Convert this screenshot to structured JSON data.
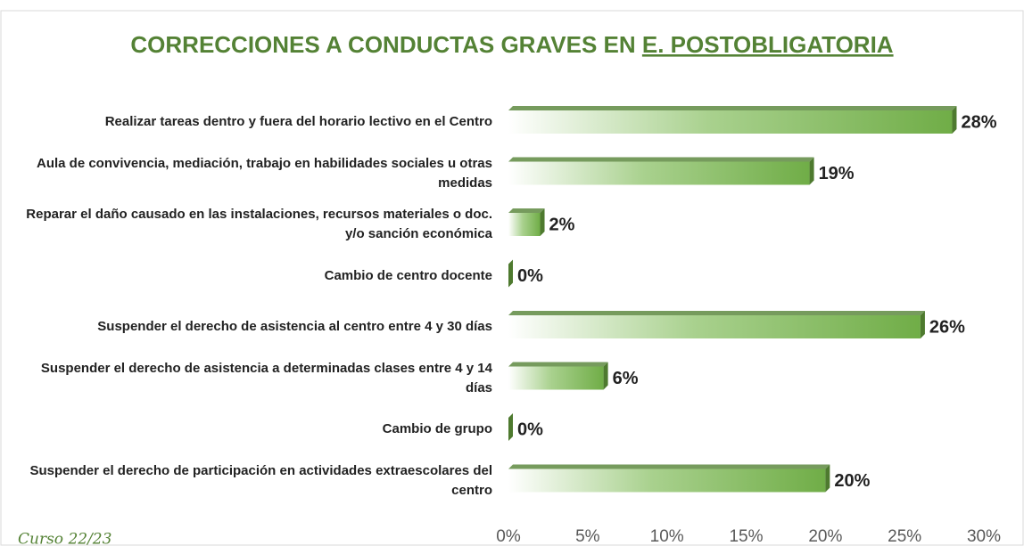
{
  "chart_data": {
    "type": "bar",
    "orientation": "horizontal",
    "title": "CORRECCIONES A CONDUCTAS GRAVES EN",
    "title_underlined": "E. POSTOBLIGATORIA",
    "annotation": "Curso 22/23",
    "categories": [
      "Realizar tareas dentro y fuera del horario lectivo en el Centro",
      "Aula de convivencia, mediación, trabajo en habilidades sociales u otras medidas",
      "Reparar el daño causado en las instalaciones, recursos materiales o doc. y/o sanción económica",
      "Cambio de centro docente",
      "Suspender el derecho de asistencia al centro entre 4 y 30 días",
      "Suspender el derecho de asistencia a determinadas clases entre 4 y 14 días",
      "Cambio de grupo",
      "Suspender el derecho de participación en actividades extraescolares del centro"
    ],
    "values": [
      28,
      19,
      2,
      0,
      26,
      6,
      0,
      20
    ],
    "value_labels": [
      "28%",
      "19%",
      "2%",
      "0%",
      "26%",
      "6%",
      "0%",
      "20%"
    ],
    "color": "#70ad47",
    "xlim": [
      0,
      30
    ],
    "xticks": [
      {
        "value": 0,
        "label": "0%"
      },
      {
        "value": 5,
        "label": "5%"
      },
      {
        "value": 10,
        "label": "10%"
      },
      {
        "value": 15,
        "label": "15%"
      },
      {
        "value": 20,
        "label": "20%"
      },
      {
        "value": 25,
        "label": "25%"
      },
      {
        "value": 30,
        "label": "30%"
      }
    ]
  }
}
